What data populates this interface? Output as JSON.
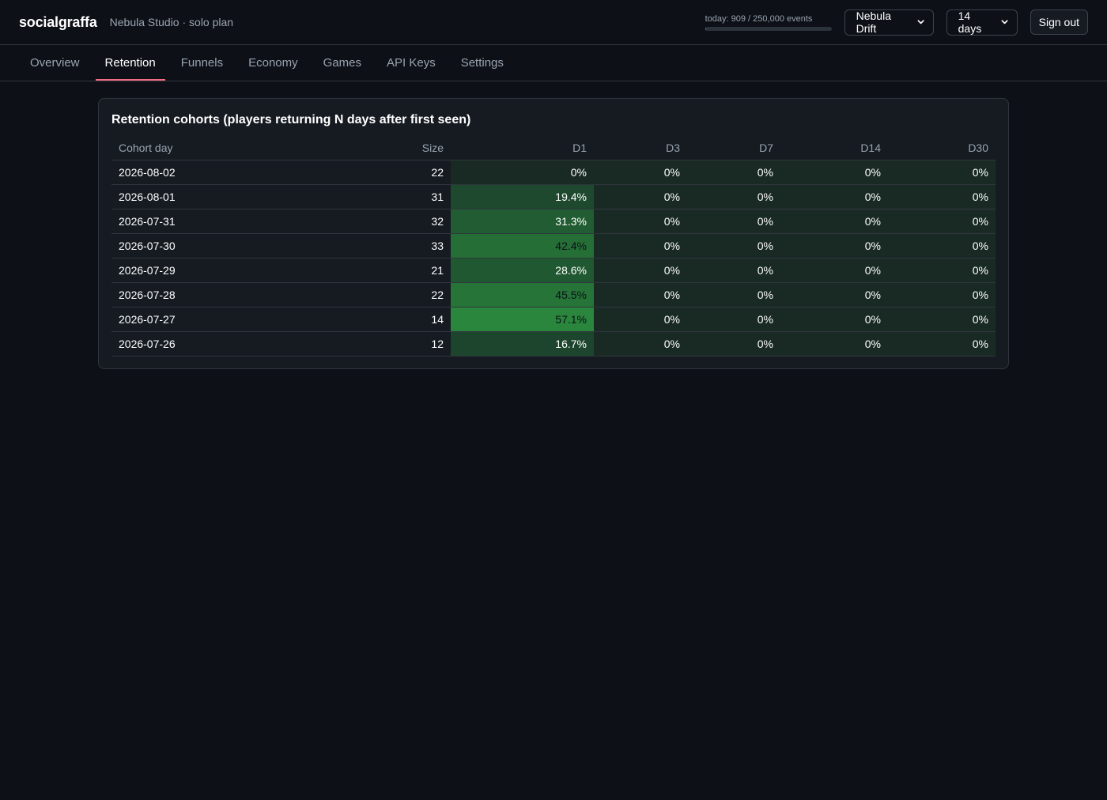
{
  "header": {
    "brand": "socialgraffa",
    "org": "Nebula Studio · solo plan",
    "usage": {
      "text": "today: 909 / 250,000 events",
      "used": 909,
      "limit": 250000
    },
    "game_select": {
      "value": "Nebula Drift"
    },
    "range_select": {
      "value": "14 days"
    },
    "sign_out_label": "Sign out",
    "icons": {
      "dropdown": "chevron-down-icon"
    }
  },
  "tabs": [
    {
      "label": "Overview",
      "active": false
    },
    {
      "label": "Retention",
      "active": true
    },
    {
      "label": "Funnels",
      "active": false
    },
    {
      "label": "Economy",
      "active": false
    },
    {
      "label": "Games",
      "active": false
    },
    {
      "label": "API Keys",
      "active": false
    },
    {
      "label": "Settings",
      "active": false
    }
  ],
  "retention": {
    "title": "Retention cohorts (players returning N days after first seen)",
    "columns": [
      "Cohort day",
      "Size",
      "D1",
      "D3",
      "D7",
      "D14",
      "D30"
    ],
    "rows": [
      {
        "cohort": "2026-08-02",
        "size": "22",
        "d1": "0%",
        "d3": "0%",
        "d7": "0%",
        "d14": "0%",
        "d30": "0%"
      },
      {
        "cohort": "2026-08-01",
        "size": "31",
        "d1": "19.4%",
        "d3": "0%",
        "d7": "0%",
        "d14": "0%",
        "d30": "0%"
      },
      {
        "cohort": "2026-07-31",
        "size": "32",
        "d1": "31.3%",
        "d3": "0%",
        "d7": "0%",
        "d14": "0%",
        "d30": "0%"
      },
      {
        "cohort": "2026-07-30",
        "size": "33",
        "d1": "42.4%",
        "d3": "0%",
        "d7": "0%",
        "d14": "0%",
        "d30": "0%"
      },
      {
        "cohort": "2026-07-29",
        "size": "21",
        "d1": "28.6%",
        "d3": "0%",
        "d7": "0%",
        "d14": "0%",
        "d30": "0%"
      },
      {
        "cohort": "2026-07-28",
        "size": "22",
        "d1": "45.5%",
        "d3": "0%",
        "d7": "0%",
        "d14": "0%",
        "d30": "0%"
      },
      {
        "cohort": "2026-07-27",
        "size": "14",
        "d1": "57.1%",
        "d3": "0%",
        "d7": "0%",
        "d14": "0%",
        "d30": "0%"
      },
      {
        "cohort": "2026-07-26",
        "size": "12",
        "d1": "16.7%",
        "d3": "0%",
        "d7": "0%",
        "d14": "0%",
        "d30": "0%"
      }
    ],
    "heat_color": "#2ea043"
  }
}
